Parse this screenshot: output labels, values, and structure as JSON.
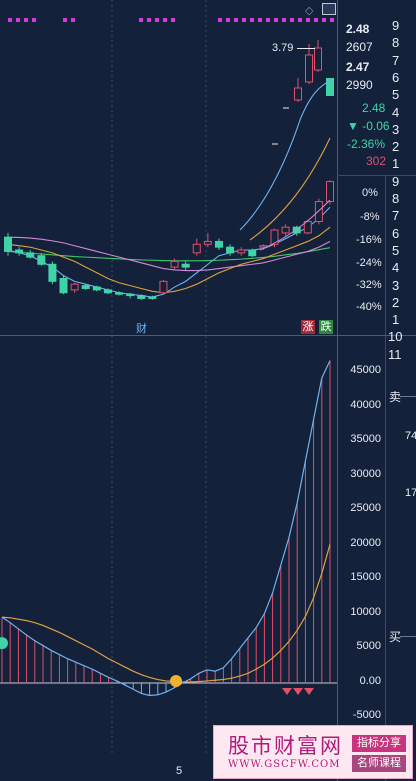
{
  "price_axis": [
    "2.48",
    "2607",
    "2.47",
    "2990",
    "2.48",
    "▼ -0.06",
    "-2.36%",
    "302"
  ],
  "percent_axis": [
    "0%",
    "-8%",
    "-16%",
    "-24%",
    "-32%",
    "-40%"
  ],
  "index_column": [
    "9",
    "8",
    "7",
    "6",
    "5",
    "4",
    "3",
    "2",
    "1",
    "9",
    "8",
    "7",
    "6",
    "5",
    "4",
    "3",
    "2",
    "1",
    "10",
    "11"
  ],
  "macd_axis": [
    "45000",
    "40000",
    "35000",
    "30000",
    "25000",
    "20000",
    "15000",
    "10000",
    "5000",
    "0.00",
    "-5000"
  ],
  "high_annotation": "3.79",
  "markers": {
    "finance": "财",
    "rise": "涨",
    "fall": "跌"
  },
  "side_panel": {
    "sell": "卖",
    "buy": "买",
    "num_a": "74",
    "num_b": "17"
  },
  "x_axis_label": "5",
  "watermark": {
    "title": "股市财富网",
    "url": "WWW.GSCFW.COM",
    "tag1": "指标分享",
    "tag2": "名师课程"
  },
  "colors": {
    "background": "#14213a",
    "up": "#e0506a",
    "down": "#3fd4a8",
    "ma5": "#6fb2f0",
    "ma10": "#e0a040",
    "ma20": "#d08ad8",
    "ma30": "#3dc96a",
    "signal_dots": "#d23bd9"
  },
  "icons": {
    "settings": "diamond-icon",
    "window": "window-icon"
  },
  "chart_data": [
    {
      "type": "candlestick",
      "title": "",
      "yaxis_right_percent": [
        "0%",
        "-8%",
        "-16%",
        "-24%",
        "-32%",
        "-40%"
      ],
      "candles": [
        {
          "o": -15.5,
          "c": -20.5,
          "h": -14,
          "l": -22
        },
        {
          "o": -20,
          "c": -21,
          "h": -19,
          "l": -22
        },
        {
          "o": -21,
          "c": -22.5,
          "h": -20,
          "l": -23
        },
        {
          "o": -22,
          "c": -25,
          "h": -21,
          "l": -25.5
        },
        {
          "o": -25,
          "c": -31,
          "h": -24,
          "l": -32
        },
        {
          "o": -30,
          "c": -35,
          "h": -29,
          "l": -35.5
        },
        {
          "o": -34,
          "c": -32,
          "h": -31.5,
          "l": -35
        },
        {
          "o": -32.5,
          "c": -33.5,
          "h": -32,
          "l": -34
        },
        {
          "o": -33,
          "c": -34,
          "h": -32.5,
          "l": -34.5
        },
        {
          "o": -34,
          "c": -35,
          "h": -33.5,
          "l": -35.5
        },
        {
          "o": -35,
          "c": -35.5,
          "h": -34.5,
          "l": -36
        },
        {
          "o": -35.5,
          "c": -36,
          "h": -35,
          "l": -37
        },
        {
          "o": -36,
          "c": -37,
          "h": -35.5,
          "l": -37.5
        },
        {
          "o": -36.5,
          "c": -37,
          "h": -36,
          "l": -37.5
        },
        {
          "o": -35,
          "c": -31,
          "h": -30.5,
          "l": -35.5
        },
        {
          "o": -26,
          "c": -24,
          "h": -23,
          "l": -27
        },
        {
          "o": -25,
          "c": -26,
          "h": -24,
          "l": -27
        },
        {
          "o": -21,
          "c": -18,
          "h": -16,
          "l": -22
        },
        {
          "o": -18,
          "c": -17,
          "h": -14,
          "l": -19
        },
        {
          "o": -17,
          "c": -19,
          "h": -16,
          "l": -20
        },
        {
          "o": -19,
          "c": -21,
          "h": -18,
          "l": -22
        },
        {
          "o": -21,
          "c": -20,
          "h": -19,
          "l": -22
        },
        {
          "o": -20,
          "c": -22,
          "h": -19.5,
          "l": -22.5
        },
        {
          "o": -19,
          "c": -18.5,
          "h": -18,
          "l": -20
        },
        {
          "o": -18,
          "c": -13,
          "h": -12.5,
          "l": -19
        },
        {
          "o": -14,
          "c": -12,
          "h": -11,
          "l": -15
        },
        {
          "o": -12,
          "c": -14,
          "h": -11.5,
          "l": -15
        },
        {
          "o": -14,
          "c": -10,
          "h": -9.5,
          "l": -14.5
        },
        {
          "o": -10,
          "c": -3,
          "h": -2,
          "l": -11
        },
        {
          "o": -3,
          "c": 4,
          "h": 4.5,
          "l": -4
        }
      ],
      "ma_lines": {
        "ma5": [
          -20,
          -21,
          -22,
          -24,
          -26,
          -29,
          -31,
          -32,
          -33,
          -34,
          -35,
          -35.5,
          -36,
          -36.5,
          -35.5,
          -33,
          -31,
          -28,
          -25,
          -22,
          -21,
          -20,
          -20,
          -19.5,
          -18,
          -16,
          -14,
          -12,
          -9,
          -5
        ],
        "ma10": [
          -18,
          -18.5,
          -19,
          -20,
          -21,
          -22.5,
          -24,
          -26,
          -28,
          -30,
          -31.5,
          -32.5,
          -33.5,
          -34.5,
          -35,
          -34.5,
          -33.5,
          -32,
          -30,
          -28,
          -26.5,
          -25,
          -24,
          -23,
          -21.5,
          -20,
          -18.5,
          -17,
          -15,
          -12
        ],
        "ma20": [
          -15.5,
          -15.6,
          -15.8,
          -16.2,
          -16.8,
          -17.5,
          -18.5,
          -19.5,
          -20.5,
          -21.5,
          -22.5,
          -23.5,
          -24.5,
          -25.5,
          -26.5,
          -27,
          -27.2,
          -27.2,
          -27,
          -26.5,
          -26,
          -25.5,
          -25,
          -24.5,
          -23.5,
          -22.5,
          -21.5,
          -20.5,
          -19,
          -17
        ],
        "ma30": [
          -20.5,
          -20.8,
          -21.1,
          -21.4,
          -21.7,
          -22,
          -22.3,
          -22.5,
          -22.7,
          -22.9,
          -23.1,
          -23.3,
          -23.5,
          -23.6,
          -23.7,
          -23.8,
          -23.8,
          -23.8,
          -23.7,
          -23.6,
          -23.4,
          -23.2,
          -22.9,
          -22.6,
          -22.2,
          -21.7,
          -21.2,
          -20.6,
          -19.9,
          -19.2
        ]
      }
    },
    {
      "type": "macd",
      "title": "",
      "ylim": [
        -5000,
        47000
      ],
      "histogram": [
        9500,
        8800,
        7900,
        7000,
        6200,
        5400,
        4700,
        4100,
        3500,
        3000,
        2500,
        2000,
        1400,
        800,
        300,
        -300,
        -900,
        -1500,
        -1800,
        -1700,
        -1300,
        -700,
        0,
        600,
        1400,
        1900,
        1700,
        2200,
        3500,
        5000,
        6500,
        8000,
        10000,
        13000,
        17000,
        21000,
        26000,
        32000,
        38000,
        44000,
        46500
      ],
      "dif": [
        9500,
        8700,
        7800,
        6900,
        6100,
        5400,
        4700,
        4100,
        3500,
        3000,
        2500,
        2000,
        1400,
        800,
        300,
        -300,
        -900,
        -1500,
        -1800,
        -1700,
        -1300,
        -700,
        0,
        600,
        1400,
        1900,
        1700,
        2200,
        3500,
        5000,
        6500,
        8000,
        10000,
        13000,
        17000,
        21000,
        26000,
        32000,
        38000,
        44000,
        46500
      ],
      "dea": [
        9500,
        9400,
        9200,
        9000,
        8700,
        8300,
        7800,
        7300,
        6700,
        6100,
        5500,
        4900,
        4200,
        3500,
        2900,
        2300,
        1700,
        1200,
        800,
        500,
        300,
        200,
        150,
        150,
        200,
        300,
        400,
        500,
        700,
        1000,
        1400,
        2000,
        2700,
        3600,
        4700,
        6000,
        7600,
        9600,
        12300,
        15800,
        20000
      ]
    }
  ]
}
